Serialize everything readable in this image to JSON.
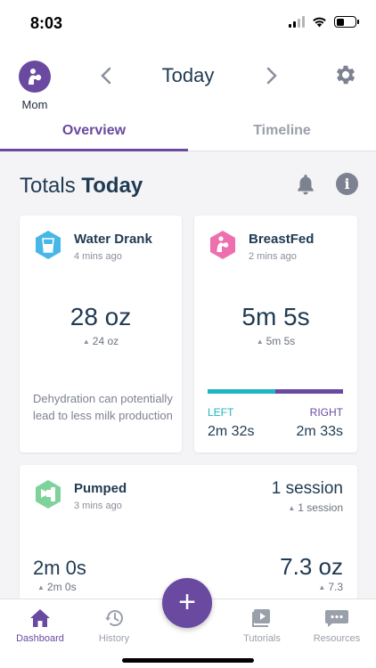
{
  "status_bar": {
    "time": "8:03"
  },
  "header": {
    "profile_name": "Mom",
    "date_title": "Today",
    "prev_icon": "chevron-left-icon",
    "next_icon": "chevron-right-icon",
    "settings_icon": "gear-icon"
  },
  "tabs": [
    {
      "label": "Overview",
      "active": true
    },
    {
      "label": "Timeline",
      "active": false
    }
  ],
  "totals": {
    "prefix": "Totals",
    "emphasis": "Today"
  },
  "cards": {
    "water": {
      "title": "Water Drank",
      "subtitle": "4 mins ago",
      "value": "28 oz",
      "delta": "24 oz",
      "note": "Dehydration can potentially lead to less milk production",
      "color": "#47b6e8"
    },
    "breastfed": {
      "title": "BreastFed",
      "subtitle": "2 mins ago",
      "value": "5m 5s",
      "delta": "5m 5s",
      "left_label": "LEFT",
      "right_label": "RIGHT",
      "left_value": "2m 32s",
      "right_value": "2m 33s",
      "left_fraction": 0.5,
      "color": "#ee6fae"
    },
    "pumped": {
      "title": "Pumped",
      "subtitle": "3 mins ago",
      "sessions": "1 session",
      "sessions_delta": "1 session",
      "duration": "2m 0s",
      "duration_delta": "2m 0s",
      "volume": "7.3 oz",
      "volume_delta": "7.3",
      "color": "#7fd29a"
    }
  },
  "bottom_nav": [
    {
      "label": "Dashboard",
      "icon": "home-icon",
      "active": true
    },
    {
      "label": "History",
      "icon": "history-icon",
      "active": false
    },
    {
      "label": "Tutorials",
      "icon": "video-icon",
      "active": false
    },
    {
      "label": "Resources",
      "icon": "chat-icon",
      "active": false
    }
  ],
  "fab_label": "+",
  "colors": {
    "accent": "#6a4aa0",
    "left": "#1fb5c2",
    "text": "#1f3a52"
  }
}
